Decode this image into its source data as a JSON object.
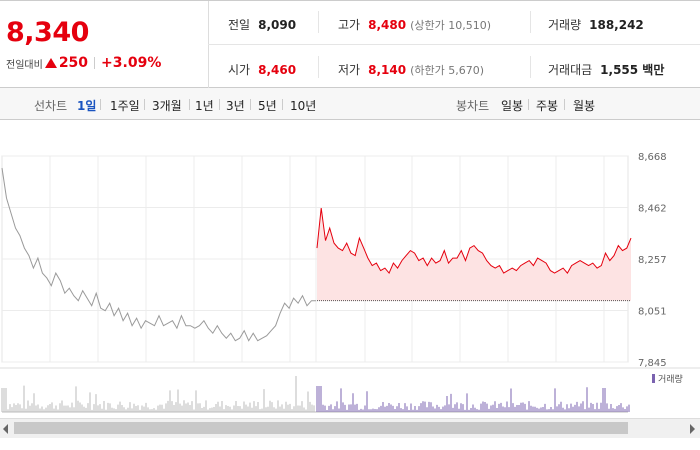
{
  "quote": {
    "price": "8,340",
    "change_label": "전일대비",
    "change_value": "250",
    "change_pct": "+3.09%",
    "direction": "up"
  },
  "stats": {
    "prev_close": {
      "label": "전일",
      "value": "8,090"
    },
    "high": {
      "label": "고가",
      "value": "8,480",
      "sub": "(상한가 10,510)"
    },
    "volume": {
      "label": "거래량",
      "value": "188,242"
    },
    "open": {
      "label": "시가",
      "value": "8,460"
    },
    "low": {
      "label": "저가",
      "value": "8,140",
      "sub": "(하한가 5,670)"
    },
    "turnover": {
      "label": "거래대금",
      "value": "1,555 백만"
    }
  },
  "toolbar": {
    "line_label": "선차트",
    "periods": [
      "1일",
      "1주일",
      "3개월",
      "1년",
      "3년",
      "5년",
      "10년"
    ],
    "active_period": "1일",
    "candle_label": "봉차트",
    "candles": [
      "일봉",
      "주봉",
      "월봉"
    ]
  },
  "colors": {
    "up": "#e5000e",
    "accent": "#1a54c0",
    "prev_line": "#9a9a9a",
    "fill": "#fde3e3",
    "volume_prev": "#bbbbbb",
    "volume_today": "#7b63b0"
  },
  "chart_data": {
    "type": "line",
    "y_ticks": [
      "8,668",
      "8,462",
      "8,257",
      "8,051",
      "7,845"
    ],
    "ylim": [
      7845,
      8668
    ],
    "reference_line": 8090,
    "volume_legend": "거래량",
    "previous_session": [
      8620,
      8500,
      8440,
      8380,
      8350,
      8300,
      8270,
      8220,
      8260,
      8200,
      8180,
      8150,
      8200,
      8170,
      8120,
      8140,
      8110,
      8090,
      8130,
      8100,
      8070,
      8120,
      8060,
      8050,
      8080,
      8030,
      8060,
      8010,
      8040,
      7990,
      8020,
      7980,
      8010,
      8000,
      7990,
      8030,
      7990,
      8000,
      8010,
      7980,
      8030,
      7990,
      7990,
      7980,
      7990,
      8010,
      7980,
      7960,
      7990,
      7960,
      7940,
      7960,
      7930,
      7940,
      7970,
      7930,
      7960,
      7930,
      7940,
      7950,
      7970,
      7990,
      8040,
      8080,
      8060,
      8100,
      8080,
      8110,
      8070,
      8090,
      8090
    ],
    "today_session": [
      8300,
      8460,
      8330,
      8380,
      8320,
      8300,
      8290,
      8320,
      8280,
      8270,
      8340,
      8300,
      8260,
      8230,
      8240,
      8210,
      8220,
      8200,
      8240,
      8220,
      8250,
      8270,
      8290,
      8280,
      8250,
      8260,
      8230,
      8260,
      8240,
      8250,
      8290,
      8240,
      8260,
      8260,
      8290,
      8250,
      8300,
      8310,
      8290,
      8280,
      8250,
      8230,
      8220,
      8230,
      8200,
      8210,
      8220,
      8210,
      8230,
      8240,
      8250,
      8230,
      8260,
      8250,
      8240,
      8210,
      8200,
      8210,
      8220,
      8200,
      8230,
      8240,
      8250,
      8240,
      8230,
      8240,
      8220,
      8230,
      8280,
      8250,
      8270,
      8310,
      8290,
      8300,
      8340
    ]
  }
}
